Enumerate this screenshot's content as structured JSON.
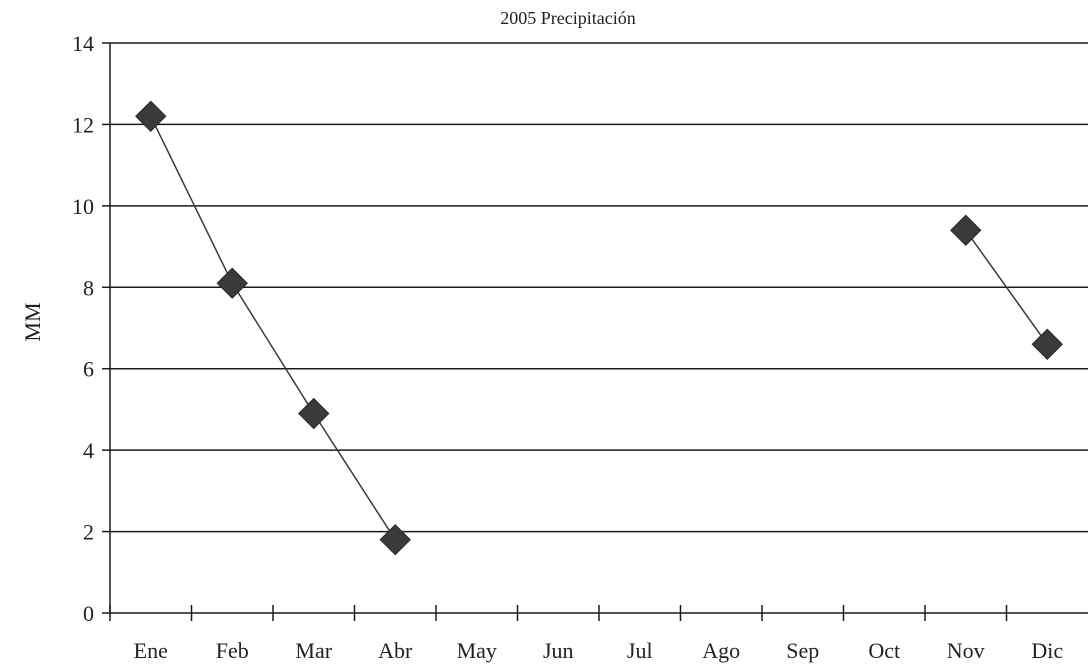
{
  "chart_data": {
    "type": "line",
    "title": "2005 Precipitación",
    "xlabel": "",
    "ylabel": "MM",
    "categories": [
      "Ene",
      "Feb",
      "Mar",
      "Abr",
      "May",
      "Jun",
      "Jul",
      "Ago",
      "Sep",
      "Oct",
      "Nov",
      "Dic"
    ],
    "series": [
      {
        "values": [
          12.2,
          8.1,
          4.9,
          1.8,
          null,
          null,
          null,
          null,
          null,
          null,
          9.4,
          6.6
        ],
        "color": "#3a3a3a",
        "marker": "diamond"
      }
    ],
    "ylim": [
      0,
      14
    ],
    "yticks": [
      0,
      2,
      4,
      6,
      8,
      10,
      12,
      14
    ],
    "grid": true
  }
}
